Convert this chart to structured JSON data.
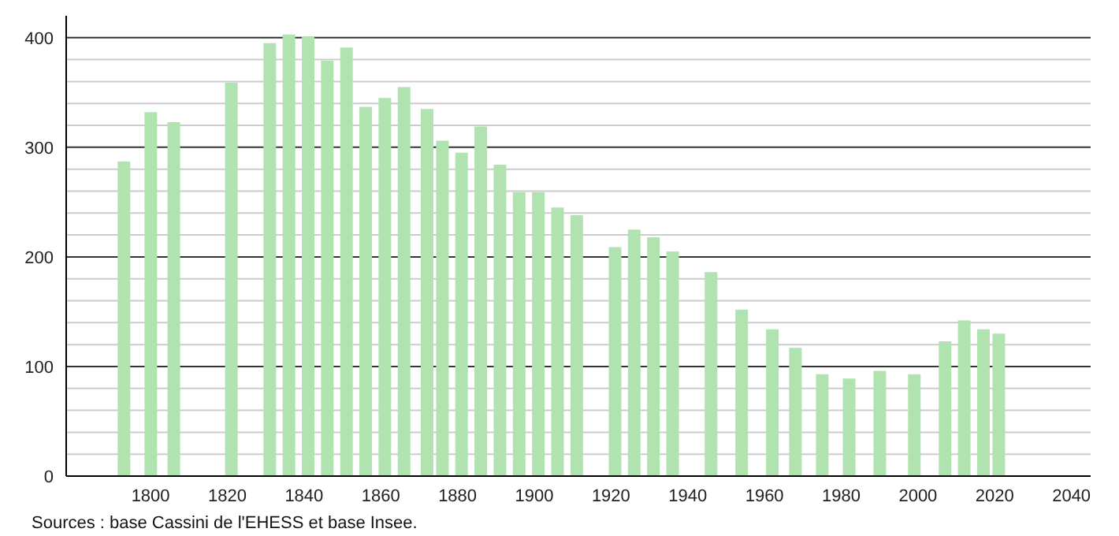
{
  "chart_data": {
    "type": "bar",
    "x": [
      1793,
      1800,
      1806,
      1821,
      1831,
      1836,
      1841,
      1846,
      1851,
      1856,
      1861,
      1866,
      1872,
      1876,
      1881,
      1886,
      1891,
      1896,
      1901,
      1906,
      1911,
      1921,
      1926,
      1931,
      1936,
      1946,
      1954,
      1962,
      1968,
      1975,
      1982,
      1990,
      1999,
      2007,
      2012,
      2017,
      2021
    ],
    "values": [
      287,
      332,
      323,
      359,
      395,
      403,
      401,
      379,
      391,
      337,
      345,
      355,
      335,
      306,
      295,
      319,
      284,
      259,
      259,
      245,
      238,
      209,
      225,
      218,
      205,
      186,
      152,
      134,
      117,
      93,
      89,
      96,
      93,
      123,
      142,
      134,
      130
    ],
    "color": "#b0e3b0",
    "xlim": [
      1778,
      2045
    ],
    "xticks": [
      1800,
      1820,
      1840,
      1860,
      1880,
      1900,
      1920,
      1940,
      1960,
      1980,
      2000,
      2020,
      2040
    ],
    "ylim": [
      0,
      420
    ],
    "yticks": [
      0,
      {
        "value": 20,
        "label": null
      },
      {
        "value": 40,
        "label": null
      },
      {
        "value": 60,
        "label": null
      },
      {
        "value": 80,
        "label": null
      },
      100,
      {
        "value": 120,
        "label": null
      },
      {
        "value": 140,
        "label": null
      },
      {
        "value": 160,
        "label": null
      },
      {
        "value": 180,
        "label": null
      },
      200,
      {
        "value": 220,
        "label": null
      },
      {
        "value": 240,
        "label": null
      },
      {
        "value": 260,
        "label": null
      },
      {
        "value": 280,
        "label": null
      },
      300,
      {
        "value": 320,
        "label": null
      },
      {
        "value": 340,
        "label": null
      },
      {
        "value": 360,
        "label": null
      },
      {
        "value": 380,
        "label": null
      },
      400
    ],
    "grid": "y",
    "annotations": [
      "Sources : base Cassini de l'EHESS et base Insee."
    ]
  }
}
